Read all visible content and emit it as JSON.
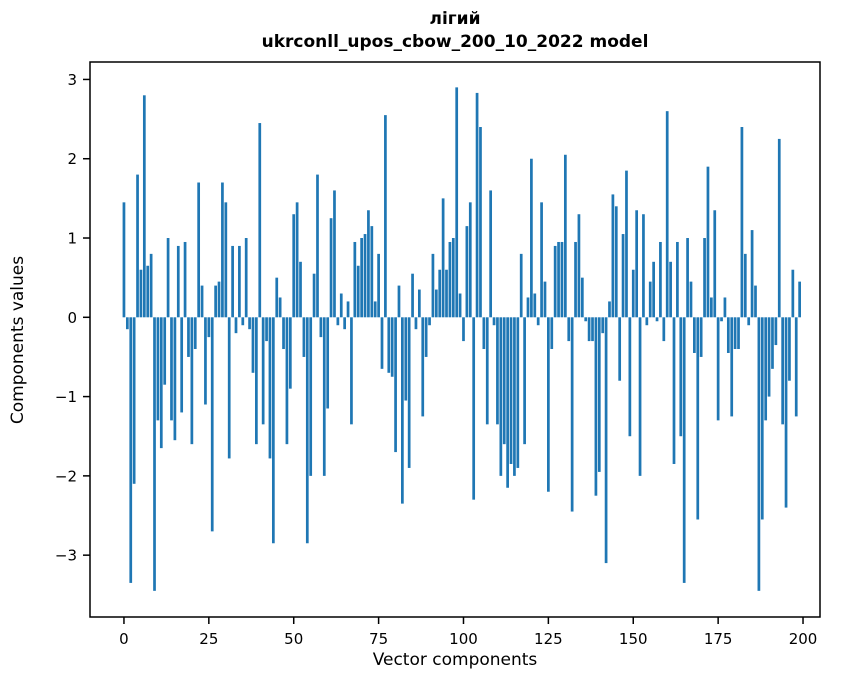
{
  "figure": {
    "title_line1": "лігий",
    "title_line2": "ukrconll_upos_cbow_200_10_2022 model",
    "xlabel": "Vector components",
    "ylabel": "Components values"
  },
  "chart_data": {
    "type": "bar",
    "title": "лігий",
    "subtitle": "ukrconll_upos_cbow_200_10_2022 model",
    "xlabel": "Vector components",
    "ylabel": "Components values",
    "bar_color": "#1f77b4",
    "n_components": 200,
    "x_start": 0,
    "xticks": [
      0,
      25,
      50,
      75,
      100,
      125,
      150,
      175,
      200
    ],
    "yticks": [
      3,
      2,
      1,
      0,
      -1,
      -2,
      -3
    ],
    "xlim": [
      -10,
      205
    ],
    "ylim": [
      -3.78,
      3.22
    ],
    "grid": false,
    "legend_position": "none",
    "values": [
      1.45,
      -0.15,
      -3.35,
      -2.1,
      1.8,
      0.6,
      2.8,
      0.65,
      0.8,
      -3.45,
      -1.3,
      -1.65,
      -0.85,
      1.0,
      -1.3,
      -1.55,
      0.9,
      -1.2,
      0.95,
      -0.5,
      -1.6,
      -0.4,
      1.7,
      0.4,
      -1.1,
      -0.25,
      -2.7,
      0.4,
      0.45,
      1.7,
      1.45,
      -1.78,
      0.9,
      -0.2,
      0.9,
      -0.1,
      1.0,
      -0.15,
      -0.7,
      -1.6,
      2.45,
      -1.35,
      -0.3,
      -1.78,
      -2.85,
      0.5,
      0.25,
      -0.4,
      -1.6,
      -0.9,
      1.3,
      1.45,
      0.7,
      -0.5,
      -2.85,
      -2.0,
      0.55,
      1.8,
      -0.25,
      -2.0,
      -1.15,
      1.25,
      1.6,
      -0.1,
      0.3,
      -0.15,
      0.2,
      -1.35,
      0.95,
      0.65,
      1.0,
      1.05,
      1.35,
      1.15,
      0.2,
      0.8,
      -0.65,
      2.55,
      -0.7,
      -0.75,
      -1.7,
      0.4,
      -2.35,
      -1.05,
      -1.9,
      0.55,
      -0.15,
      0.35,
      -1.25,
      -0.5,
      -0.1,
      0.8,
      0.35,
      0.6,
      1.5,
      0.6,
      0.95,
      1.0,
      2.9,
      0.3,
      -0.3,
      1.15,
      1.45,
      -2.3,
      2.83,
      2.4,
      -0.4,
      -1.35,
      1.6,
      -0.1,
      -1.35,
      -2.0,
      -1.6,
      -2.15,
      -1.85,
      -2.0,
      -1.9,
      0.8,
      -1.6,
      0.25,
      2.0,
      0.3,
      -0.1,
      1.45,
      0.45,
      -2.2,
      -0.4,
      0.9,
      0.95,
      0.95,
      2.05,
      -0.3,
      -2.45,
      0.95,
      1.3,
      0.5,
      -0.05,
      -0.3,
      -0.3,
      -2.25,
      -1.95,
      -0.2,
      -3.1,
      0.2,
      1.55,
      1.4,
      -0.8,
      1.05,
      1.85,
      -1.5,
      0.6,
      1.35,
      -2.0,
      1.3,
      -0.1,
      0.45,
      0.7,
      -0.05,
      0.95,
      -0.3,
      2.6,
      0.7,
      -1.85,
      0.95,
      -1.5,
      -3.35,
      1.0,
      0.45,
      -0.45,
      -2.55,
      -0.5,
      1.0,
      1.9,
      0.25,
      1.35,
      -1.3,
      -0.05,
      0.25,
      -0.45,
      -1.25,
      -0.4,
      -0.4,
      2.4,
      0.8,
      -0.1,
      1.1,
      0.4,
      -3.45,
      -2.55,
      -1.3,
      -1.0,
      -0.65,
      -0.35,
      2.25,
      -1.35,
      -2.4,
      -0.8,
      0.6,
      -1.25,
      0.45
    ]
  }
}
